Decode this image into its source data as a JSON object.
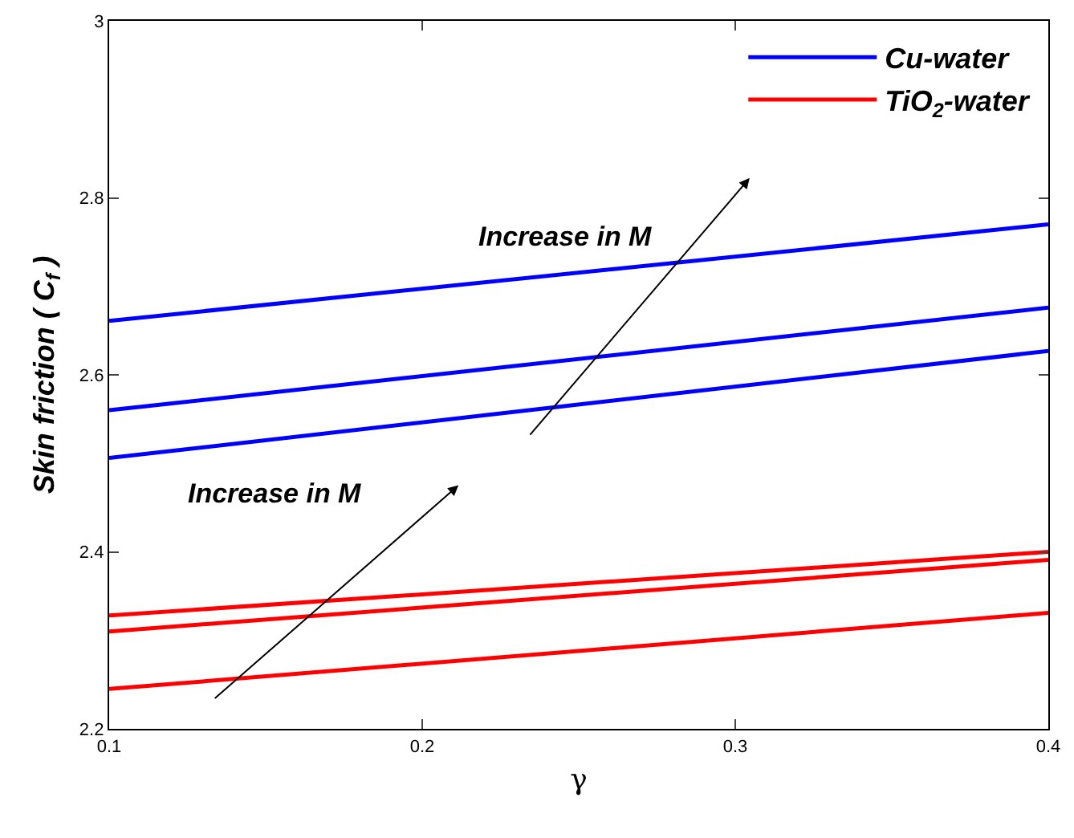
{
  "chart_data": {
    "type": "line",
    "xlabel": "γ",
    "ylabel": "Skin friction ( C$_{f}$ )",
    "xlim": [
      0.1,
      0.4
    ],
    "xticks": [
      0.1,
      0.2,
      0.3,
      0.4
    ],
    "ylim": [
      2.2,
      3
    ],
    "yticks": [
      2.2,
      2.4,
      2.6,
      2.8,
      3
    ],
    "grid": false,
    "legend": "top right",
    "marker": "none",
    "line_style": "solid",
    "annotations": [
      "Increase in M",
      "Increase in M"
    ],
    "x": [
      0.1,
      0.4
    ],
    "series": [
      {
        "name": "Cu-water",
        "color": "#0000ff",
        "values": [
          2.661,
          2.77
        ]
      },
      {
        "color": "#0000ff",
        "values": [
          2.56,
          2.676
        ]
      },
      {
        "color": "#0000ff",
        "values": [
          2.506,
          2.627
        ]
      },
      {
        "name": "TiO$_{2}$-water",
        "color": "#ff0000",
        "values": [
          2.328,
          2.4
        ]
      },
      {
        "color": "#ff0000",
        "values": [
          2.31,
          2.391
        ]
      },
      {
        "color": "#ff0000",
        "values": [
          2.245,
          2.331
        ]
      }
    ]
  }
}
